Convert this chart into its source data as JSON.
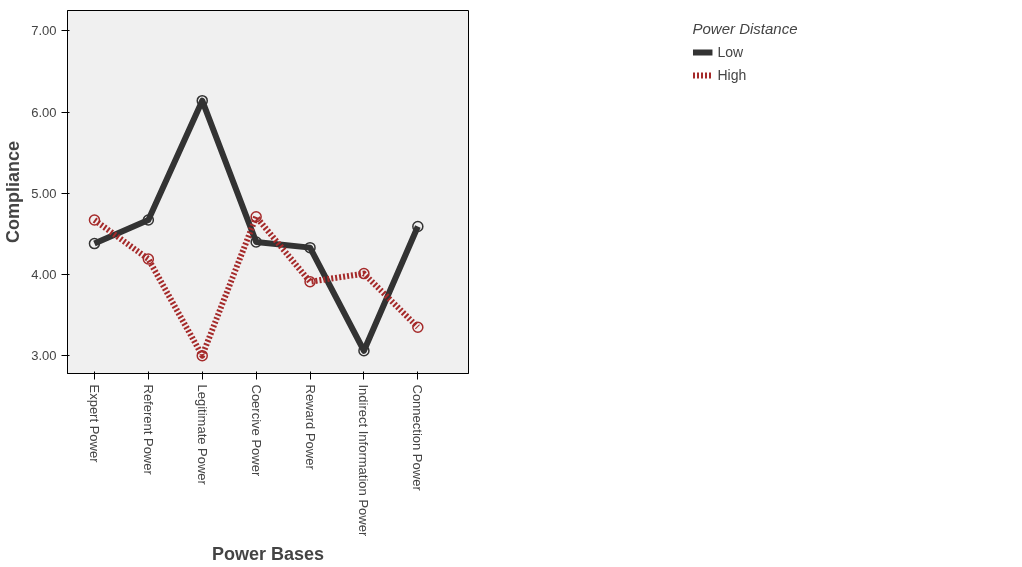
{
  "chart_data": {
    "type": "line",
    "xlabel": "Power Bases",
    "ylabel": "Compliance",
    "legend_title": "Power Distance",
    "categories": [
      "Expert Power",
      "Referent Power",
      "Legitimate Power",
      "Coercive Power",
      "Reward Power",
      "Indirect Information Power",
      "Connection Power"
    ],
    "series": [
      {
        "name": "Low",
        "color": "#333333",
        "line_style": "solid",
        "values": [
          4.38,
          4.67,
          6.14,
          4.4,
          4.33,
          3.06,
          4.59
        ]
      },
      {
        "name": "High",
        "color": "#a52a2a",
        "line_style": "dotted",
        "values": [
          4.67,
          4.19,
          3.0,
          4.71,
          3.91,
          4.01,
          3.35
        ]
      }
    ],
    "ylim": [
      2.78,
      7.25
    ],
    "yticks": [
      {
        "value": 3,
        "label": "3.00"
      },
      {
        "value": 4,
        "label": "4.00"
      },
      {
        "value": 5,
        "label": "5.00"
      },
      {
        "value": 6,
        "label": "6.00"
      },
      {
        "value": 7,
        "label": "7.00"
      }
    ],
    "grid": false,
    "legend": "top right",
    "marker": "circle"
  }
}
